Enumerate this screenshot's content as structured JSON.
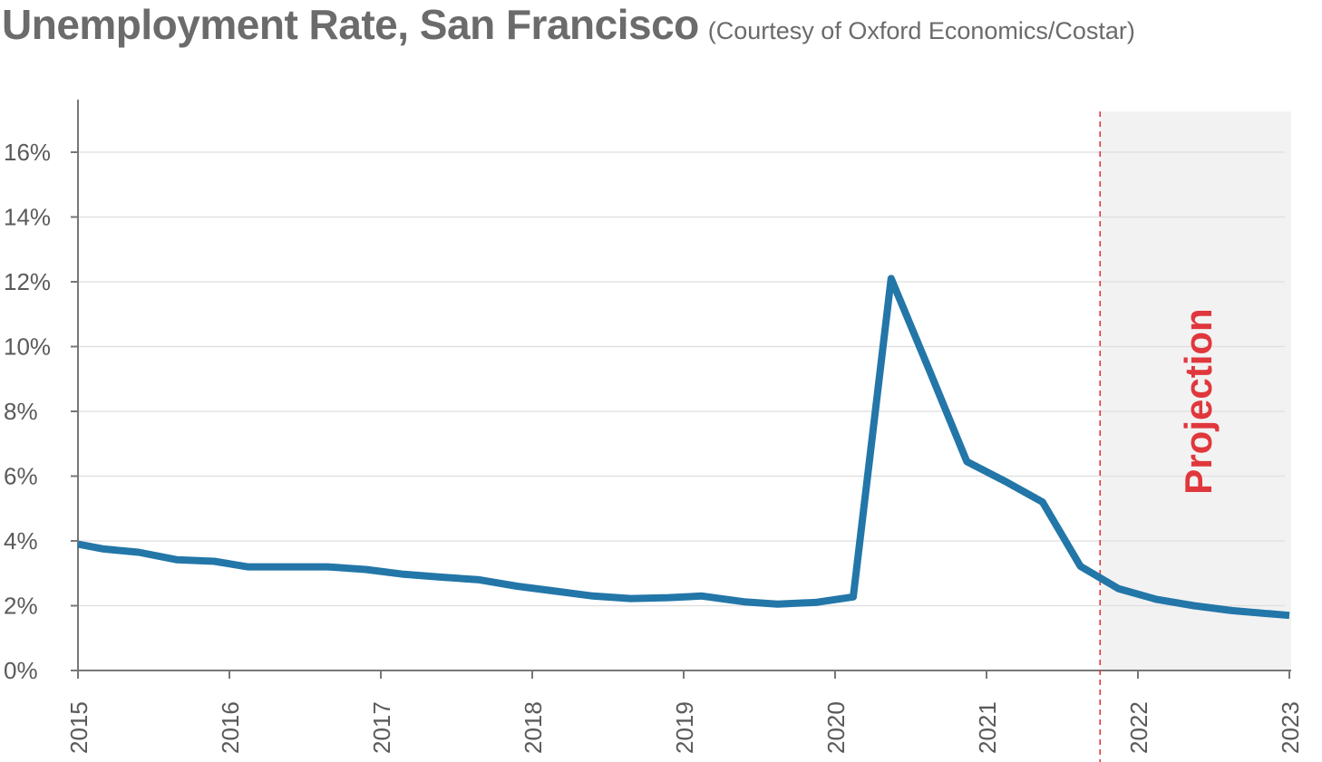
{
  "chart_data": {
    "type": "line",
    "title": "Unemployment Rate, San Francisco",
    "subtitle": "(Courtesy of Oxford Economics/Costar)",
    "annotation": "Projection",
    "projection_start": 2021.75,
    "xlim": [
      2015,
      2023
    ],
    "ylim": [
      0,
      17.5
    ],
    "x_ticks": [
      2015,
      2016,
      2017,
      2018,
      2019,
      2020,
      2021,
      2022,
      2023
    ],
    "x_tick_labels": [
      "2015",
      "2016",
      "2017",
      "2018",
      "2019",
      "2020",
      "2021",
      "2022",
      "2023"
    ],
    "y_ticks": [
      0,
      2,
      4,
      6,
      8,
      10,
      12,
      14,
      16
    ],
    "y_tick_labels": [
      "0%",
      "2%",
      "4%",
      "6%",
      "8%",
      "10%",
      "12%",
      "14%",
      "16%"
    ],
    "series": [
      {
        "name": "Unemployment Rate",
        "x": [
          2015.0,
          2015.17,
          2015.4,
          2015.65,
          2015.9,
          2016.12,
          2016.4,
          2016.65,
          2016.9,
          2017.15,
          2017.4,
          2017.65,
          2017.9,
          2018.15,
          2018.4,
          2018.65,
          2018.9,
          2019.12,
          2019.4,
          2019.62,
          2019.87,
          2020.12,
          2020.37,
          2020.62,
          2020.87,
          2021.12,
          2021.37,
          2021.62,
          2021.87,
          2022.12,
          2022.37,
          2022.62,
          2022.87,
          2023.0
        ],
        "y": [
          3.9,
          3.75,
          3.65,
          3.42,
          3.37,
          3.2,
          3.2,
          3.2,
          3.12,
          2.97,
          2.88,
          2.8,
          2.6,
          2.45,
          2.3,
          2.22,
          2.25,
          2.3,
          2.12,
          2.05,
          2.1,
          2.27,
          12.1,
          9.3,
          6.45,
          5.85,
          5.2,
          3.22,
          2.53,
          2.2,
          2.0,
          1.85,
          1.75,
          1.7
        ]
      }
    ],
    "colors": {
      "line": "#2376a8",
      "projection_shade": "#f2f2f2",
      "projection_line": "#e0373c",
      "grid": "#dedede",
      "axis": "#777777"
    }
  }
}
